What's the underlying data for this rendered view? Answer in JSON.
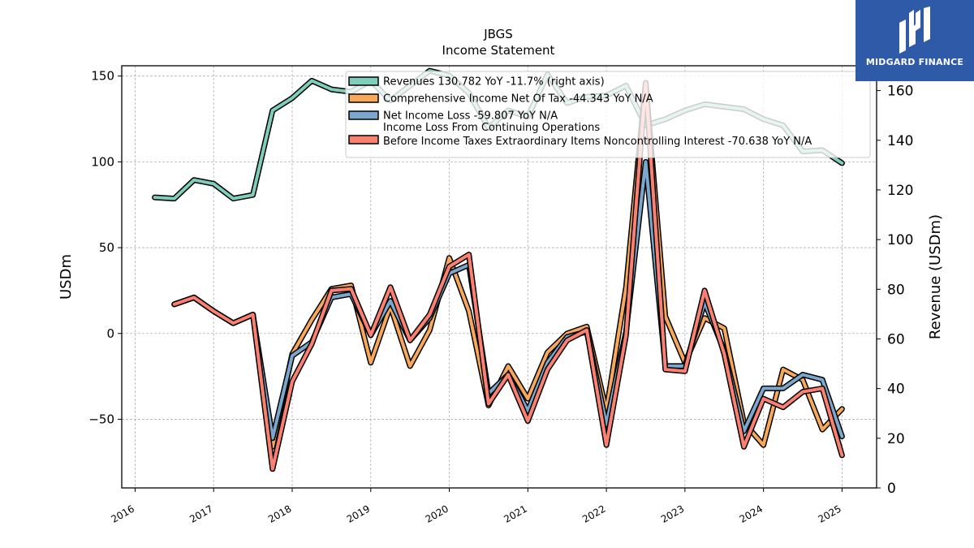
{
  "chart_data": {
    "type": "line",
    "title": "JBGS",
    "subtitle": "Income Statement",
    "ylabel": "USDm",
    "ylabel_right": "Revenue (USDm)",
    "ylim": [
      -90,
      156
    ],
    "ylim_right": [
      0,
      170
    ],
    "xlim": [
      2015.83,
      2025.44
    ],
    "yticks": [
      -50,
      0,
      50,
      100,
      150
    ],
    "yticks_right": [
      0,
      20,
      40,
      60,
      80,
      100,
      120,
      140,
      160
    ],
    "xticks": [
      2016,
      2017,
      2018,
      2019,
      2020,
      2021,
      2022,
      2023,
      2024,
      2025
    ],
    "ytick_labels": [
      "−50",
      "0",
      "50",
      "100",
      "150"
    ],
    "yticks_right_labels": [
      "0",
      "20",
      "40",
      "60",
      "80",
      "100",
      "120",
      "140",
      "160"
    ],
    "xtick_labels": [
      "2016",
      "2017",
      "2018",
      "2019",
      "2020",
      "2021",
      "2022",
      "2023",
      "2024",
      "2025"
    ],
    "grid": true,
    "legend_position": "top-center",
    "series": [
      {
        "name": "Revenues  130.782 YoY -11.7% (right axis)",
        "color": "#7fcdbb",
        "axis": "right",
        "x": [
          2016.25,
          2016.5,
          2016.75,
          2017.0,
          2017.25,
          2017.5,
          2017.75,
          2018.0,
          2018.25,
          2018.5,
          2018.75,
          2019.0,
          2019.25,
          2019.5,
          2019.75,
          2020.0,
          2020.25,
          2020.5,
          2020.75,
          2021.0,
          2021.25,
          2021.5,
          2021.75,
          2022.0,
          2022.25,
          2022.5,
          2022.75,
          2023.0,
          2023.25,
          2023.5,
          2023.75,
          2024.0,
          2024.25,
          2024.5,
          2024.75,
          2025.0
        ],
        "values": [
          117,
          116.5,
          124,
          122.5,
          116.5,
          118,
          152,
          157,
          164,
          160.5,
          159.5,
          164,
          156,
          162,
          168,
          166,
          159,
          145,
          152,
          149.5,
          166.5,
          155,
          157.5,
          158,
          162,
          146,
          148.5,
          152,
          154.5,
          153.5,
          152.5,
          148.5,
          146,
          135.5,
          136,
          130.8
        ]
      },
      {
        "name": "Comprehensive Income Net Of Tax  -44.343 YoY N/A",
        "color": "#f7a85a",
        "axis": "left",
        "x": [
          2016.5,
          2016.75,
          2017.0,
          2017.25,
          2017.5,
          2017.75,
          2018.0,
          2018.25,
          2018.5,
          2018.75,
          2019.0,
          2019.25,
          2019.5,
          2019.75,
          2020.0,
          2020.25,
          2020.5,
          2020.75,
          2021.0,
          2021.25,
          2021.5,
          2021.75,
          2022.0,
          2022.25,
          2022.5,
          2022.75,
          2023.0,
          2023.25,
          2023.5,
          2023.75,
          2024.0,
          2024.25,
          2024.5,
          2024.75,
          2025.0
        ],
        "values": [
          17,
          21,
          13,
          6,
          11,
          -66,
          -12,
          8,
          26,
          28,
          -17,
          16,
          -19,
          2,
          44,
          13,
          -42,
          -19,
          -38,
          -11,
          0,
          4,
          -45,
          27,
          146,
          10,
          -17,
          9,
          3,
          -52,
          -65,
          -21,
          -27,
          -56,
          -44
        ]
      },
      {
        "name": "Net Income Loss  -59.807 YoY N/A",
        "color": "#7ba7cc",
        "axis": "left",
        "x": [
          2016.5,
          2016.75,
          2017.0,
          2017.25,
          2017.5,
          2017.75,
          2018.0,
          2018.25,
          2018.5,
          2018.75,
          2019.0,
          2019.25,
          2019.5,
          2019.75,
          2020.0,
          2020.25,
          2020.5,
          2020.75,
          2021.0,
          2021.25,
          2021.5,
          2021.75,
          2022.0,
          2022.25,
          2022.5,
          2022.75,
          2023.0,
          2023.25,
          2023.5,
          2023.75,
          2024.0,
          2024.25,
          2024.5,
          2024.75,
          2025.0
        ],
        "values": [
          17,
          21,
          13,
          6,
          11,
          -61,
          -13,
          -5,
          21,
          23,
          -1,
          19,
          -4,
          9,
          35,
          40,
          -35,
          -24,
          -45,
          -17,
          -2,
          1,
          -53,
          1,
          100,
          -19,
          -19,
          18,
          -10,
          -57,
          -32,
          -32,
          -24,
          -27,
          -60
        ]
      },
      {
        "name": "Income Loss From Continuing Operations\nBefore Income Taxes Extraordinary Items Noncontrolling Interest  -70.638 YoY N/A",
        "color": "#fa8072",
        "axis": "left",
        "x": [
          2016.5,
          2016.75,
          2017.0,
          2017.25,
          2017.5,
          2017.75,
          2018.0,
          2018.25,
          2018.5,
          2018.75,
          2019.0,
          2019.25,
          2019.5,
          2019.75,
          2020.0,
          2020.25,
          2020.5,
          2020.75,
          2021.0,
          2021.25,
          2021.5,
          2021.75,
          2022.0,
          2022.25,
          2022.5,
          2022.75,
          2023.0,
          2023.25,
          2023.5,
          2023.75,
          2024.0,
          2024.25,
          2024.5,
          2024.75,
          2025.0
        ],
        "values": [
          17,
          21,
          13,
          6,
          11,
          -79,
          -28,
          -6,
          25,
          26,
          -1,
          27,
          -4,
          11,
          39,
          46,
          -41,
          -24,
          -51,
          -21,
          -4,
          2,
          -65,
          -1,
          146,
          -21,
          -22,
          25,
          -12,
          -66,
          -38,
          -43,
          -34,
          -32,
          -71
        ]
      }
    ]
  },
  "logo": {
    "text": "MIDGARD FINANCE"
  }
}
